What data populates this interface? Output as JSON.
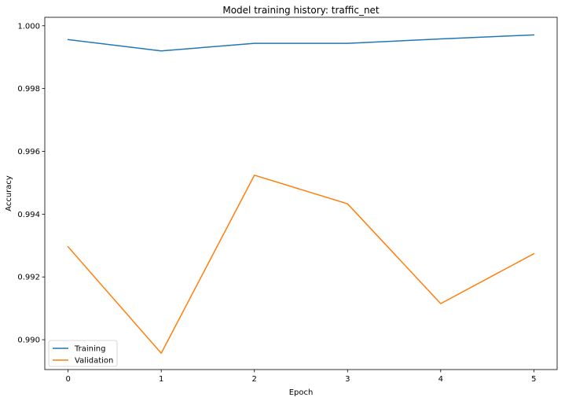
{
  "chart_data": {
    "type": "line",
    "title": "Model training history: traffic_net",
    "xlabel": "Epoch",
    "ylabel": "Accuracy",
    "x": [
      0,
      1,
      2,
      3,
      4,
      5
    ],
    "xticks": [
      "0",
      "1",
      "2",
      "3",
      "4",
      "5"
    ],
    "yticks": [
      "0.990",
      "0.992",
      "0.994",
      "0.996",
      "0.998",
      "1.000"
    ],
    "xlim": [
      -0.25,
      5.25
    ],
    "ylim": [
      0.98905,
      1.00027
    ],
    "grid": false,
    "legend_position": "lower-left",
    "series": [
      {
        "name": "Training",
        "color": "#1f77b4",
        "values": [
          0.99956,
          0.9992,
          0.99944,
          0.99944,
          0.99958,
          0.99971
        ]
      },
      {
        "name": "Validation",
        "color": "#ff7f0e",
        "values": [
          0.99296,
          0.98957,
          0.99524,
          0.99433,
          0.99115,
          0.99274
        ]
      }
    ]
  }
}
